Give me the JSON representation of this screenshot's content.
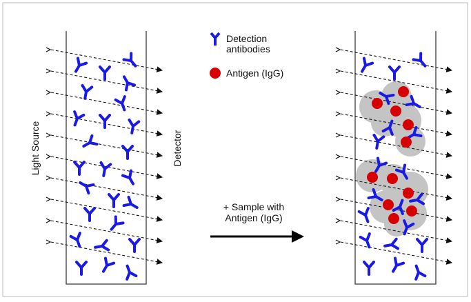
{
  "legend": {
    "items": [
      {
        "lines": [
          "Detection",
          "antibodies"
        ]
      },
      {
        "lines": [
          "Antigen (IgG)"
        ]
      }
    ]
  },
  "labels": {
    "light_source": "Light Source",
    "detector": "Detector"
  },
  "arrow_label": {
    "lines": [
      "+ Sample with",
      "Antigen (IgG)"
    ]
  }
}
